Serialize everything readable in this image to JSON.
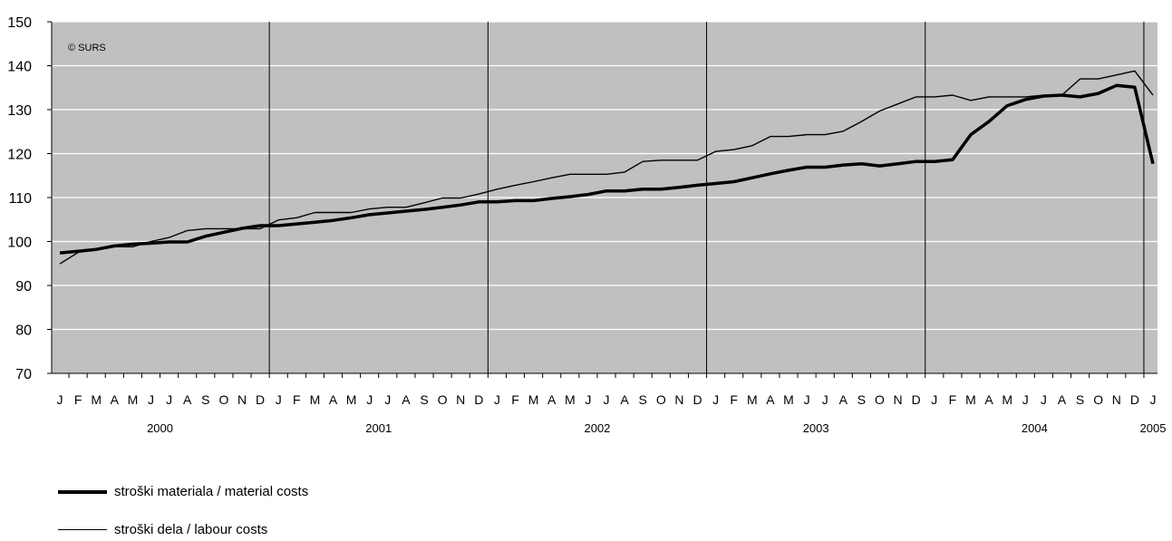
{
  "chart_data": {
    "type": "line",
    "watermark": "© SURS",
    "ylim": [
      70,
      150
    ],
    "yticks": [
      70,
      80,
      90,
      100,
      110,
      120,
      130,
      140,
      150
    ],
    "grid": true,
    "months": [
      "J",
      "F",
      "M",
      "A",
      "M",
      "J",
      "J",
      "A",
      "S",
      "O",
      "N",
      "D",
      "J",
      "F",
      "M",
      "A",
      "M",
      "J",
      "J",
      "A",
      "S",
      "O",
      "N",
      "D",
      "J",
      "F",
      "M",
      "A",
      "M",
      "J",
      "J",
      "A",
      "S",
      "O",
      "N",
      "D",
      "J",
      "F",
      "M",
      "A",
      "M",
      "J",
      "J",
      "A",
      "S",
      "O",
      "N",
      "D",
      "J",
      "F",
      "M",
      "A",
      "M",
      "J",
      "J",
      "A",
      "S",
      "O",
      "N",
      "D",
      "J"
    ],
    "years": [
      {
        "label": "2000",
        "index": 5.5
      },
      {
        "label": "2001",
        "index": 17.5
      },
      {
        "label": "2002",
        "index": 29.5
      },
      {
        "label": "2003",
        "index": 41.5
      },
      {
        "label": "2004",
        "index": 53.5
      },
      {
        "label": "2005",
        "index": 60
      }
    ],
    "series": [
      {
        "name": "stroški materiala / material costs",
        "style": "thick",
        "values": [
          97.4,
          97.8,
          98.2,
          99.0,
          99.4,
          99.6,
          99.9,
          99.9,
          101.2,
          102.1,
          103.0,
          103.6,
          103.6,
          104.0,
          104.4,
          104.8,
          105.4,
          106.1,
          106.5,
          106.9,
          107.3,
          107.8,
          108.3,
          109.0,
          109.0,
          109.3,
          109.3,
          109.8,
          110.2,
          110.7,
          111.5,
          111.5,
          111.9,
          111.9,
          112.3,
          112.8,
          113.2,
          113.6,
          114.5,
          115.4,
          116.2,
          116.9,
          116.9,
          117.4,
          117.7,
          117.2,
          117.7,
          118.2,
          118.2,
          118.6,
          124.3,
          127.3,
          130.9,
          132.3,
          133.1,
          133.3,
          132.9,
          133.7,
          135.5,
          135.1,
          117.7
        ]
      },
      {
        "name": "stroški dela / labour costs",
        "style": "thin",
        "values": [
          94.9,
          97.5,
          98.2,
          98.8,
          98.8,
          100.0,
          100.9,
          102.5,
          102.9,
          102.9,
          102.9,
          102.9,
          104.9,
          105.4,
          106.6,
          106.6,
          106.6,
          107.4,
          107.8,
          107.8,
          108.8,
          109.9,
          109.9,
          110.8,
          111.9,
          112.8,
          113.6,
          114.5,
          115.3,
          115.3,
          115.3,
          115.8,
          118.2,
          118.5,
          118.5,
          118.5,
          120.5,
          120.9,
          121.8,
          123.9,
          123.9,
          124.3,
          124.3,
          125.1,
          127.3,
          129.7,
          131.3,
          132.9,
          132.9,
          133.3,
          132.1,
          132.9,
          132.9,
          132.9,
          133.3,
          133.3,
          137.0,
          137.0,
          137.9,
          138.8,
          133.3
        ]
      }
    ]
  }
}
